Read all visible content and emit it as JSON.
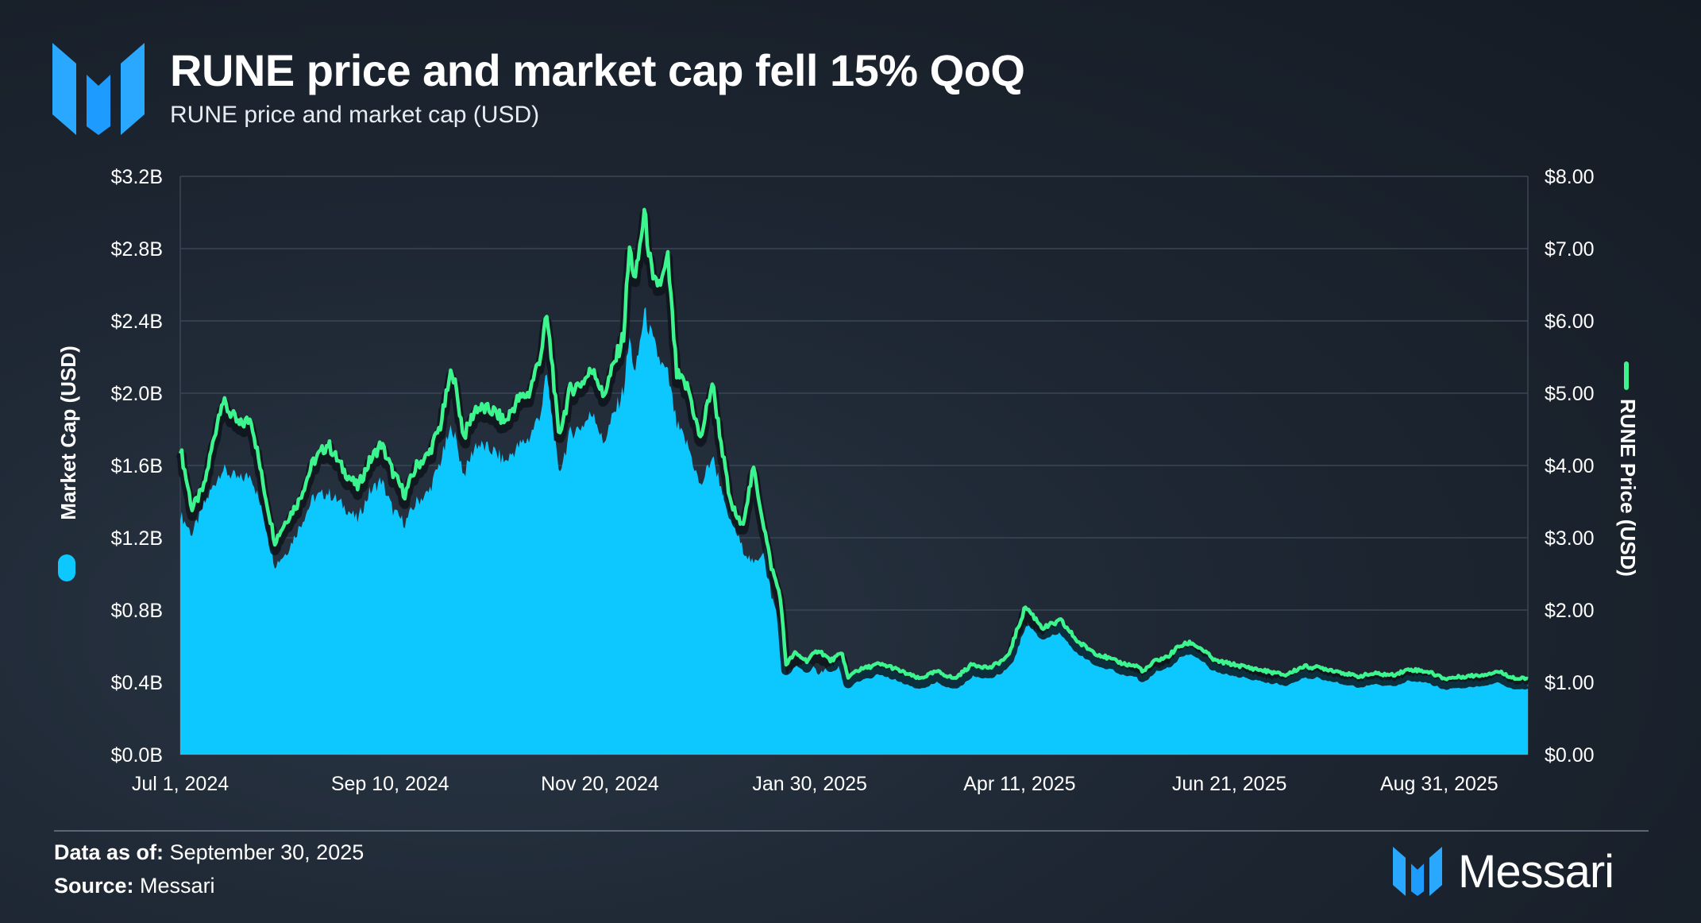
{
  "header": {
    "title": "RUNE price and market cap fell 15% QoQ",
    "subtitle": "RUNE price and market cap (USD)"
  },
  "footer": {
    "data_as_of_label": "Data as of:",
    "data_as_of_value": "September 30, 2025",
    "source_label": "Source:",
    "source_value": "Messari",
    "brand_name": "Messari"
  },
  "colors": {
    "market_cap": "#0dc8ff",
    "price": "#3df58e",
    "brand": "#1e9bff",
    "grid": "#3a4656",
    "text": "#ffffff"
  },
  "chart_data": {
    "type": "area",
    "title": "RUNE price and market cap fell 15% QoQ",
    "subtitle": "RUNE price and market cap (USD)",
    "x_tick_labels": [
      "Jul 1, 2024",
      "Sep 10, 2024",
      "Nov 20, 2024",
      "Jan 30, 2025",
      "Apr 11, 2025",
      "Jun 21, 2025",
      "Aug 31, 2025"
    ],
    "x_range_days": [
      0,
      456
    ],
    "left_axis": {
      "label": "Market Cap (USD)",
      "range": [
        0,
        3.2
      ],
      "unit": "billion USD",
      "tick_labels": [
        "$0.0B",
        "$0.4B",
        "$0.8B",
        "$1.2B",
        "$1.6B",
        "$2.0B",
        "$2.4B",
        "$2.8B",
        "$3.2B"
      ]
    },
    "right_axis": {
      "label": "RUNE Price (USD)",
      "range": [
        0,
        8
      ],
      "unit": "USD",
      "tick_labels": [
        "$0.00",
        "$1.00",
        "$2.00",
        "$3.00",
        "$4.00",
        "$5.00",
        "$6.00",
        "$7.00",
        "$8.00"
      ]
    },
    "grid": true,
    "series": [
      {
        "name": "Market Cap (USD)",
        "axis": "left",
        "kind": "area",
        "x": [
          0,
          4,
          8,
          14,
          20,
          24,
          28,
          32,
          36,
          40,
          45,
          50,
          55,
          60,
          64,
          68,
          72,
          76,
          80,
          84,
          88,
          92,
          96,
          100,
          106,
          110,
          114,
          118,
          122,
          124,
          126,
          128,
          132,
          136,
          140,
          143,
          146,
          150,
          152,
          154,
          157,
          160,
          163,
          165,
          168,
          172,
          176,
          180,
          186,
          190,
          194,
          198,
          200,
          203,
          205,
          208,
          212,
          216,
          220,
          224,
          226,
          228,
          232,
          236,
          240,
          244,
          250,
          256,
          262,
          268,
          274,
          280,
          286,
          292,
          298,
          304,
          310,
          316,
          320,
          324,
          326,
          330,
          334,
          338,
          342,
          346,
          350,
          356,
          362,
          368,
          374,
          380,
          386,
          392,
          398,
          404,
          410,
          416,
          422,
          428,
          434,
          440,
          446,
          452,
          456
        ],
        "values": [
          1.33,
          1.22,
          1.38,
          1.58,
          1.52,
          1.55,
          1.33,
          1.05,
          1.12,
          1.25,
          1.42,
          1.45,
          1.38,
          1.3,
          1.45,
          1.52,
          1.35,
          1.28,
          1.4,
          1.45,
          1.62,
          1.82,
          1.55,
          1.72,
          1.68,
          1.62,
          1.7,
          1.75,
          1.9,
          2.1,
          1.85,
          1.55,
          1.78,
          1.82,
          1.9,
          1.72,
          1.85,
          2.02,
          2.3,
          2.1,
          2.45,
          2.28,
          2.15,
          2.1,
          1.82,
          1.7,
          1.48,
          1.65,
          1.32,
          1.15,
          1.05,
          1.15,
          0.88,
          0.72,
          0.45,
          0.48,
          0.52,
          0.45,
          0.49,
          0.52,
          0.4,
          0.45,
          0.47,
          0.48,
          0.47,
          0.44,
          0.42,
          0.45,
          0.42,
          0.5,
          0.48,
          0.55,
          0.72,
          0.67,
          0.73,
          0.62,
          0.55,
          0.5,
          0.48,
          0.45,
          0.44,
          0.48,
          0.5,
          0.58,
          0.6,
          0.55,
          0.5,
          0.48,
          0.45,
          0.42,
          0.42,
          0.47,
          0.45,
          0.43,
          0.41,
          0.42,
          0.41,
          0.44,
          0.44,
          0.4,
          0.41,
          0.41,
          0.44,
          0.39,
          0.39
        ]
      },
      {
        "name": "RUNE Price (USD)",
        "axis": "right",
        "kind": "line",
        "x": [
          0,
          4,
          8,
          14,
          20,
          24,
          28,
          32,
          36,
          40,
          45,
          50,
          55,
          60,
          64,
          68,
          72,
          76,
          80,
          84,
          88,
          92,
          96,
          100,
          106,
          110,
          114,
          118,
          122,
          124,
          126,
          128,
          132,
          136,
          140,
          143,
          146,
          150,
          152,
          154,
          157,
          160,
          163,
          165,
          168,
          172,
          176,
          180,
          186,
          190,
          194,
          198,
          200,
          203,
          205,
          208,
          212,
          216,
          220,
          224,
          226,
          228,
          232,
          236,
          240,
          244,
          250,
          256,
          262,
          268,
          274,
          280,
          286,
          292,
          298,
          304,
          310,
          316,
          320,
          324,
          326,
          330,
          334,
          338,
          342,
          346,
          350,
          356,
          362,
          368,
          374,
          380,
          386,
          392,
          398,
          404,
          410,
          416,
          422,
          428,
          434,
          440,
          446,
          452,
          456
        ],
        "values": [
          4.25,
          3.4,
          3.7,
          4.9,
          4.55,
          4.65,
          3.75,
          2.95,
          3.25,
          3.5,
          4.05,
          4.3,
          3.95,
          3.7,
          4.05,
          4.3,
          3.9,
          3.6,
          4.0,
          4.15,
          4.55,
          5.35,
          4.4,
          4.8,
          4.75,
          4.6,
          4.9,
          5.0,
          5.55,
          6.05,
          5.35,
          4.4,
          5.05,
          5.15,
          5.35,
          4.95,
          5.3,
          5.8,
          7.0,
          6.55,
          7.5,
          6.5,
          6.55,
          6.85,
          5.25,
          5.05,
          4.35,
          5.15,
          3.5,
          3.15,
          3.95,
          3.05,
          2.6,
          2.2,
          1.25,
          1.4,
          1.3,
          1.45,
          1.3,
          1.4,
          1.05,
          1.15,
          1.2,
          1.25,
          1.22,
          1.15,
          1.05,
          1.15,
          1.05,
          1.25,
          1.2,
          1.35,
          2.05,
          1.75,
          1.85,
          1.55,
          1.4,
          1.3,
          1.25,
          1.22,
          1.15,
          1.3,
          1.35,
          1.5,
          1.55,
          1.45,
          1.3,
          1.25,
          1.2,
          1.15,
          1.1,
          1.22,
          1.2,
          1.15,
          1.08,
          1.12,
          1.1,
          1.18,
          1.15,
          1.05,
          1.08,
          1.1,
          1.15,
          1.05,
          1.05
        ]
      }
    ]
  }
}
